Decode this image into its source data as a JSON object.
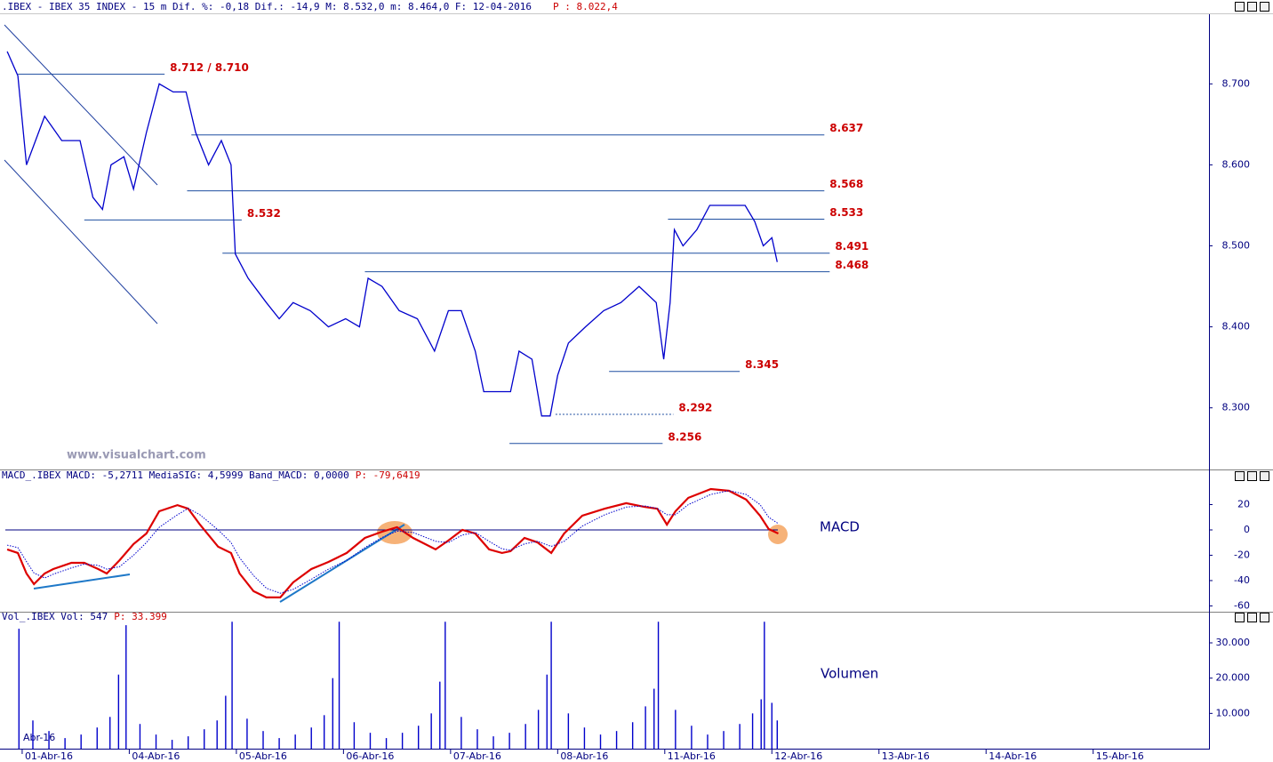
{
  "header": {
    "info": ".IBEX - IBEX 35 INDEX -  15 m Dif. %: -0,18 Dif.: -14,9 M: 8.532,0 m: 8.464,0 F: 12-04-2016",
    "price": "P : 8.022,4",
    "watermark": "www.visualchart.com"
  },
  "chart_data": [
    {
      "type": "line",
      "color": "#0000cc",
      "xlim": [
        -0.207,
        11.04
      ],
      "ylim": [
        8225,
        8786
      ],
      "yticks": [
        {
          "value": 8300,
          "label": "8.300"
        },
        {
          "value": 8400,
          "label": "8.400"
        },
        {
          "value": 8500,
          "label": "8.500"
        },
        {
          "value": 8600,
          "label": "8.600"
        },
        {
          "value": 8700,
          "label": "8.700"
        }
      ],
      "x": [
        -0.14,
        -0.04,
        0.04,
        0.21,
        0.37,
        0.54,
        0.66,
        0.75,
        0.83,
        0.95,
        1.04,
        1.16,
        1.28,
        1.41,
        1.53,
        1.62,
        1.74,
        1.86,
        1.95,
        1.99,
        2.11,
        2.28,
        2.4,
        2.53,
        2.69,
        2.86,
        3.02,
        3.15,
        3.23,
        3.36,
        3.52,
        3.69,
        3.85,
        3.98,
        4.1,
        4.23,
        4.31,
        4.43,
        4.56,
        4.64,
        4.76,
        4.85,
        4.93,
        5.0,
        5.1,
        5.26,
        5.43,
        5.59,
        5.76,
        5.92,
        5.99,
        6.05,
        6.09,
        6.17,
        6.3,
        6.42,
        6.59,
        6.75,
        6.84,
        6.92,
        7.0,
        7.05
      ],
      "values": [
        8740,
        8710,
        8600,
        8660,
        8630,
        8630,
        8560,
        8545,
        8600,
        8610,
        8570,
        8640,
        8700,
        8690,
        8690,
        8640,
        8600,
        8630,
        8600,
        8490,
        8460,
        8430,
        8410,
        8430,
        8420,
        8400,
        8410,
        8400,
        8460,
        8450,
        8420,
        8410,
        8370,
        8420,
        8420,
        8370,
        8320,
        8320,
        8320,
        8370,
        8360,
        8290,
        8290,
        8340,
        8380,
        8400,
        8420,
        8430,
        8450,
        8430,
        8360,
        8430,
        8520,
        8500,
        8520,
        8550,
        8550,
        8550,
        8530,
        8500,
        8510,
        8480
      ],
      "annotations": [
        {
          "label": "8.712 / 8.710",
          "value": 8712,
          "x_range": [
            -0.04,
            1.33
          ]
        },
        {
          "label": "8.637",
          "value": 8637,
          "x_range": [
            1.58,
            7.49
          ]
        },
        {
          "label": "8.568",
          "value": 8568,
          "x_range": [
            1.54,
            7.49
          ]
        },
        {
          "label": "8.532",
          "value": 8532,
          "x_range": [
            0.58,
            2.05
          ]
        },
        {
          "label": "8.533",
          "value": 8533,
          "x_range": [
            6.03,
            7.49
          ]
        },
        {
          "label": "8.491",
          "value": 8491,
          "x_range": [
            1.87,
            7.54
          ]
        },
        {
          "label": "8.468",
          "value": 8468,
          "x_range": [
            3.2,
            7.54
          ]
        },
        {
          "label": "8.345",
          "value": 8345,
          "x_range": [
            5.48,
            6.7
          ]
        },
        {
          "label": "8.292",
          "value": 8292,
          "x_range": [
            4.98,
            6.08
          ],
          "dashed": true
        },
        {
          "label": "8.256",
          "value": 8256,
          "x_range": [
            4.55,
            5.98
          ]
        }
      ]
    },
    {
      "type": "line",
      "title": "MACD_.IBEX MACD: -5,2711 MediaSIG: 4,5999 Band_MACD: 0,0000",
      "subtitle": "P: -79,6419",
      "annotation": "MACD",
      "xlim": [
        -0.207,
        11.04
      ],
      "ylim": [
        -64.6,
        38.6
      ],
      "yticks": [
        -60,
        -40,
        -20,
        0,
        20
      ],
      "x": [
        -0.14,
        -0.04,
        0.04,
        0.11,
        0.21,
        0.29,
        0.46,
        0.58,
        0.71,
        0.79,
        0.91,
        1.04,
        1.16,
        1.28,
        1.45,
        1.55,
        1.66,
        1.83,
        1.95,
        2.03,
        2.16,
        2.28,
        2.41,
        2.53,
        2.7,
        2.86,
        3.03,
        3.2,
        3.36,
        3.5,
        3.65,
        3.86,
        3.98,
        4.11,
        4.23,
        4.36,
        4.48,
        4.56,
        4.69,
        4.81,
        4.94,
        5.06,
        5.23,
        5.44,
        5.64,
        5.81,
        5.93,
        6.02,
        6.1,
        6.22,
        6.43,
        6.6,
        6.76,
        6.89,
        6.97,
        7.06
      ],
      "series": [
        {
          "color": "#dd0000",
          "values": [
            -15.4,
            -18.2,
            -34.4,
            -42.8,
            -34.4,
            -30.9,
            -26,
            -26,
            -30.9,
            -34.4,
            -23.9,
            -11.2,
            -2.8,
            14.7,
            19.6,
            16.8,
            4.2,
            -13.3,
            -18.2,
            -34.4,
            -48.4,
            -53.3,
            -53.3,
            -41.4,
            -30.9,
            -25.3,
            -18.2,
            -6.3,
            -1.4,
            2.1,
            -6.3,
            -15.4,
            -8.4,
            0,
            -2.8,
            -15.4,
            -18.2,
            -16.8,
            -6.3,
            -9.8,
            -18.2,
            -2.8,
            11.2,
            16.8,
            21.1,
            18.2,
            16.8,
            4.2,
            14.7,
            25.3,
            32.3,
            30.9,
            23.9,
            11.2,
            0.7,
            -2.8
          ]
        },
        {
          "color": "#0000cc",
          "dashed": true,
          "values": [
            -12,
            -14,
            -25,
            -34,
            -38,
            -35,
            -30,
            -27,
            -28,
            -31,
            -29,
            -20,
            -10,
            2,
            12,
            17,
            12,
            0,
            -10,
            -22,
            -36,
            -46,
            -50,
            -47,
            -39,
            -31,
            -24,
            -14,
            -6,
            -1,
            -2,
            -9,
            -10,
            -4,
            -2,
            -9,
            -15,
            -16,
            -11,
            -9,
            -13,
            -9,
            3,
            12,
            18,
            19,
            17,
            12,
            12,
            20,
            28,
            31,
            28,
            20,
            10,
            5
          ]
        }
      ]
    },
    {
      "type": "bar",
      "title": "Vol_.IBEX Vol: 547",
      "subtitle": "P: 33.399",
      "annotation": "Volumen",
      "corner_label": "Abr-16",
      "color": "#0000cc",
      "xlim": [
        -0.207,
        11.04
      ],
      "ylim": [
        0,
        35800
      ],
      "yticks": [
        {
          "value": 10000,
          "label": "10.000"
        },
        {
          "value": 20000,
          "label": "20.000"
        },
        {
          "value": 30000,
          "label": "30.000"
        }
      ],
      "xticks": [
        {
          "value": 0,
          "label": "01-Abr-16"
        },
        {
          "value": 1,
          "label": "04-Abr-16"
        },
        {
          "value": 2,
          "label": "05-Abr-16"
        },
        {
          "value": 3,
          "label": "06-Abr-16"
        },
        {
          "value": 4,
          "label": "07-Abr-16"
        },
        {
          "value": 5,
          "label": "08-Abr-16"
        },
        {
          "value": 6,
          "label": "11-Abr-16"
        },
        {
          "value": 7,
          "label": "12-Abr-16"
        },
        {
          "value": 8,
          "label": "13-Abr-16"
        },
        {
          "value": 9,
          "label": "14-Abr-16"
        },
        {
          "value": 10,
          "label": "15-Abr-16"
        }
      ],
      "x": [
        -0.03,
        0.1,
        0.25,
        0.4,
        0.55,
        0.7,
        0.82,
        0.9,
        0.97,
        1.1,
        1.25,
        1.4,
        1.55,
        1.7,
        1.82,
        1.9,
        1.96,
        2.1,
        2.25,
        2.4,
        2.55,
        2.7,
        2.82,
        2.9,
        2.96,
        3.1,
        3.25,
        3.4,
        3.55,
        3.7,
        3.82,
        3.9,
        3.95,
        4.1,
        4.25,
        4.4,
        4.55,
        4.7,
        4.82,
        4.9,
        4.94,
        5.1,
        5.25,
        5.4,
        5.55,
        5.7,
        5.82,
        5.9,
        5.94,
        6.1,
        6.25,
        6.4,
        6.55,
        6.7,
        6.82,
        6.9,
        6.93,
        7.0,
        7.05
      ],
      "values": [
        34000,
        8000,
        5000,
        3000,
        4000,
        6000,
        9000,
        21000,
        35000,
        7000,
        4000,
        2500,
        3500,
        5500,
        8000,
        15000,
        36000,
        8500,
        5000,
        3000,
        4000,
        6000,
        9500,
        20000,
        36000,
        7500,
        4500,
        3000,
        4500,
        6500,
        10000,
        19000,
        36000,
        9000,
        5500,
        3500,
        4500,
        7000,
        11000,
        21000,
        36000,
        10000,
        6000,
        4000,
        5000,
        7500,
        12000,
        17000,
        36000,
        11000,
        6500,
        4000,
        5000,
        7000,
        10000,
        14000,
        36000,
        13000,
        8000
      ]
    }
  ]
}
